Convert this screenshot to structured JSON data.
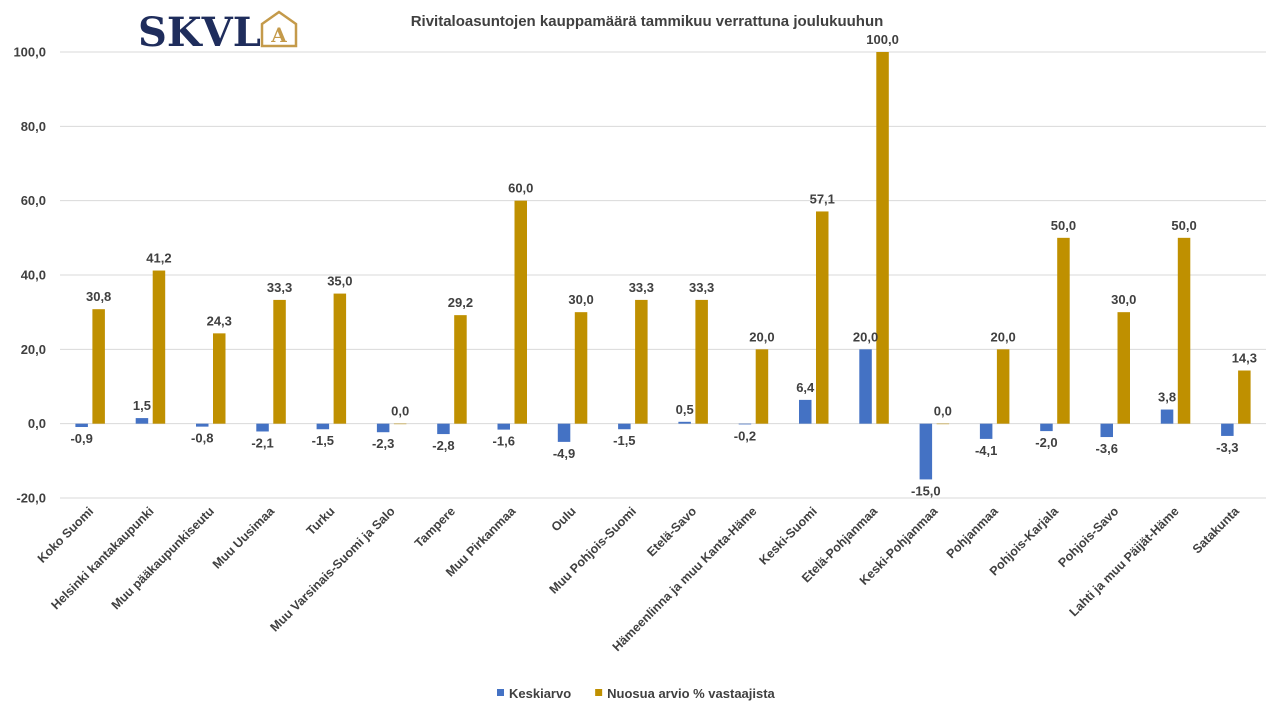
{
  "logo": {
    "text": "SKVL",
    "letter": "A",
    "text_color": "#1f2d5c",
    "accent_color": "#c49a4a"
  },
  "chart_data": {
    "type": "bar",
    "title": "Rivitaloasuntojen kauppamäärä  tammikuu  verrattuna joulukuuhun",
    "ylim": [
      -20,
      100
    ],
    "yticks": [
      -20,
      0,
      20,
      40,
      60,
      80,
      100
    ],
    "ytick_labels": [
      "-20,0",
      "0,0",
      "20,0",
      "40,0",
      "60,0",
      "80,0",
      "100,0"
    ],
    "grid": true,
    "legend_position": "bottom",
    "categories": [
      "Koko Suomi",
      "Helsinki kantakaupunki",
      "Muu pääkaupunkiseutu",
      "Muu Uusimaa",
      "Turku",
      "Muu Varsinais-Suomi ja Salo",
      "Tampere",
      "Muu Pirkanmaa",
      "Oulu",
      "Muu Pohjois-Suomi",
      "Etelä-Savo",
      "Hämeenlinna ja muu Kanta-Häme",
      "Keski-Suomi",
      "Etelä-Pohjanmaa",
      "Keski-Pohjanmaa",
      "Pohjanmaa",
      "Pohjois-Karjala",
      "Pohjois-Savo",
      "Lahti ja muu Päijät-Häme",
      "Satakunta"
    ],
    "series": [
      {
        "name": "Keskiarvo",
        "color": "#4472c4",
        "values": [
          -0.9,
          1.5,
          -0.8,
          -2.1,
          -1.5,
          -2.3,
          -2.8,
          -1.6,
          -4.9,
          -1.5,
          0.5,
          -0.2,
          6.4,
          20.0,
          -15.0,
          -4.1,
          -2.0,
          -3.6,
          3.8,
          -3.3
        ],
        "labels": [
          "-0,9",
          "1,5",
          "-0,8",
          "-2,1",
          "-1,5",
          "-2,3",
          "-2,8",
          "-1,6",
          "-4,9",
          "-1,5",
          "0,5",
          "-0,2",
          "6,4",
          "20,0",
          "-15,0",
          "-4,1",
          "-2,0",
          "-3,6",
          "3,8",
          "-3,3"
        ]
      },
      {
        "name": "Nuosua arvio % vastaajista",
        "color": "#bf9000",
        "values": [
          30.8,
          41.2,
          24.3,
          33.3,
          35.0,
          0.0,
          29.2,
          60.0,
          30.0,
          33.3,
          33.3,
          20.0,
          57.1,
          100.0,
          0.0,
          20.0,
          50.0,
          30.0,
          50.0,
          14.3
        ],
        "labels": [
          "30,8",
          "41,2",
          "24,3",
          "33,3",
          "35,0",
          "0,0",
          "29,2",
          "60,0",
          "30,0",
          "33,3",
          "33,3",
          "20,0",
          "57,1",
          "100,0",
          "0,0",
          "20,0",
          "50,0",
          "30,0",
          "50,0",
          "14,3"
        ]
      }
    ]
  }
}
